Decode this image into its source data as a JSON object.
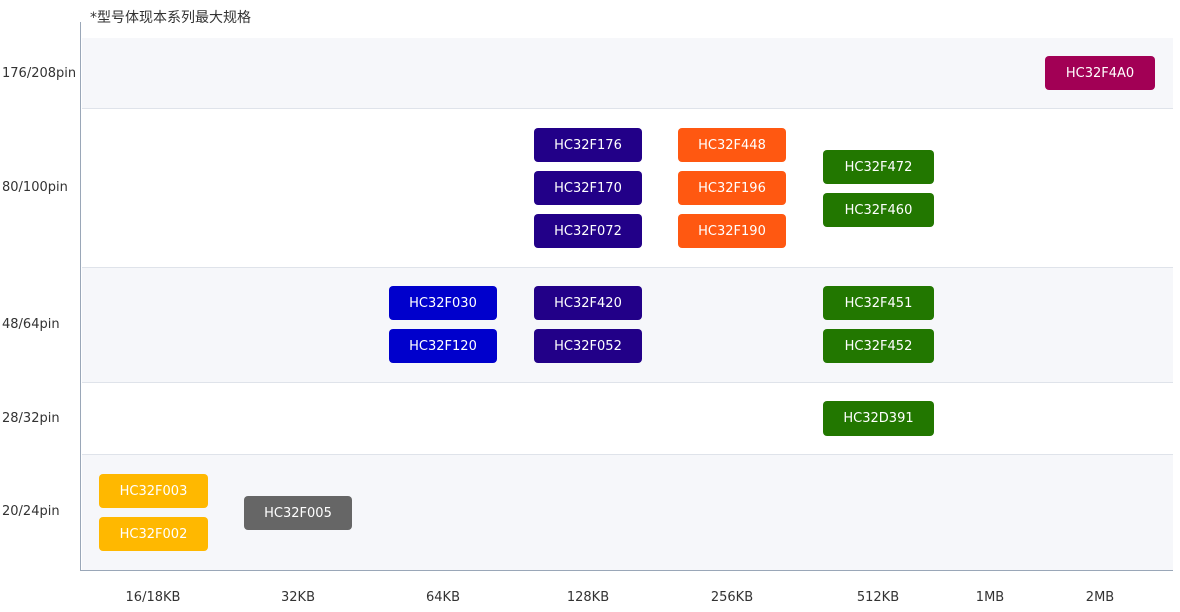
{
  "note": "*型号体现本系列最大规格",
  "y_labels": [
    "176/208pin",
    "80/100pin",
    "48/64pin",
    "28/32pin",
    "20/24pin"
  ],
  "x_labels": [
    "16/18KB",
    "32KB",
    "64KB",
    "128KB",
    "256KB",
    "512KB",
    "1MB",
    "2MB"
  ],
  "colors": {
    "f00x": "#FFB800",
    "f005": "#666666",
    "f0x": "#0000CC",
    "f1x": "#220088",
    "f4x_orange": "#FF5811",
    "f4x_green": "#227700",
    "f4a0": "#A20055"
  },
  "chips": [
    {
      "label": "HC32F4A0",
      "color": "#A20055"
    },
    {
      "label": "HC32F176",
      "color": "#220088"
    },
    {
      "label": "HC32F170",
      "color": "#220088"
    },
    {
      "label": "HC32F072",
      "color": "#220088"
    },
    {
      "label": "HC32F448",
      "color": "#FF5811"
    },
    {
      "label": "HC32F196",
      "color": "#FF5811"
    },
    {
      "label": "HC32F190",
      "color": "#FF5811"
    },
    {
      "label": "HC32F472",
      "color": "#227700"
    },
    {
      "label": "HC32F460",
      "color": "#227700"
    },
    {
      "label": "HC32F030",
      "color": "#0000CC"
    },
    {
      "label": "HC32F120",
      "color": "#0000CC"
    },
    {
      "label": "HC32F420",
      "color": "#220088"
    },
    {
      "label": "HC32F052",
      "color": "#220088"
    },
    {
      "label": "HC32F451",
      "color": "#227700"
    },
    {
      "label": "HC32F452",
      "color": "#227700"
    },
    {
      "label": "HC32D391",
      "color": "#227700"
    },
    {
      "label": "HC32F003",
      "color": "#FFB800"
    },
    {
      "label": "HC32F002",
      "color": "#FFB800"
    },
    {
      "label": "HC32F005",
      "color": "#666666"
    }
  ]
}
